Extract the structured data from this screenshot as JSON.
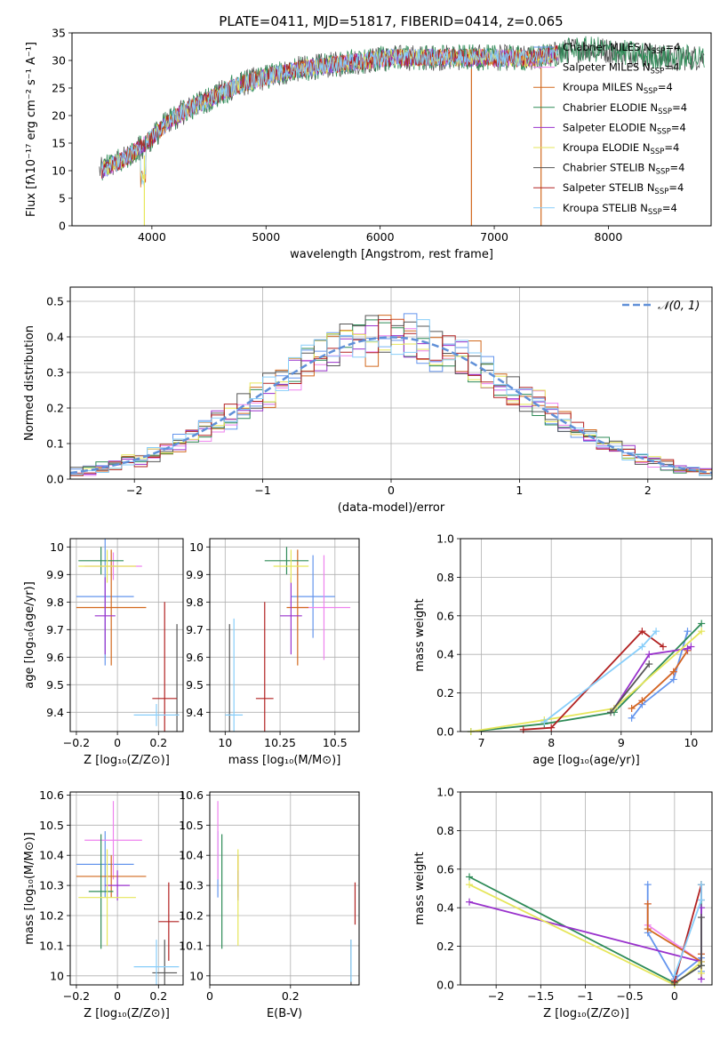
{
  "figure": {
    "title": "PLATE=0411, MJD=51817, FIBERID=0414, z=0.065"
  },
  "colors": {
    "series": [
      "#6495ed",
      "#ee82ee",
      "#d2691e",
      "#2e8b57",
      "#9932cc",
      "#e6e65a",
      "#555555",
      "#b22222",
      "#87cefa"
    ],
    "gaussian": "#6090d8",
    "grid": "#b0b0b0"
  },
  "chart_data": [
    {
      "id": "spectrum",
      "type": "line",
      "title": "PLATE=0411, MJD=51817, FIBERID=0414, z=0.065",
      "xlabel": "wavelength [Angstrom, rest frame]",
      "ylabel": "Flux [fλ10⁻¹⁷ erg cm⁻² s⁻¹ A⁻¹]",
      "xlim": [
        3300,
        8900
      ],
      "ylim": [
        0,
        35
      ],
      "xticks": [
        4000,
        5000,
        6000,
        7000,
        8000
      ],
      "yticks": [
        0,
        5,
        10,
        15,
        20,
        25,
        30,
        35
      ],
      "grid": false,
      "legend_position": "right",
      "legend": [
        {
          "name": "Chabrier MILES",
          "suffix": "N",
          "sub": "SSP",
          "tail": "=4"
        },
        {
          "name": "Salpeter MILES",
          "suffix": "N",
          "sub": "SSP",
          "tail": "=4"
        },
        {
          "name": "Kroupa MILES",
          "suffix": "N",
          "sub": "SSP",
          "tail": "=4"
        },
        {
          "name": "Chabrier ELODIE",
          "suffix": "N",
          "sub": "SSP",
          "tail": "=4"
        },
        {
          "name": "Salpeter ELODIE",
          "suffix": "N",
          "sub": "SSP",
          "tail": "=4"
        },
        {
          "name": "Kroupa ELODIE",
          "suffix": "N",
          "sub": "SSP",
          "tail": "=4"
        },
        {
          "name": "Chabrier STELIB",
          "suffix": "N",
          "sub": "SSP",
          "tail": "=4"
        },
        {
          "name": "Salpeter STELIB",
          "suffix": "N",
          "sub": "SSP",
          "tail": "=4"
        },
        {
          "name": "Kroupa STELIB",
          "suffix": "N",
          "sub": "SSP",
          "tail": "=4"
        }
      ],
      "continuum": {
        "x": [
          3550,
          3650,
          3750,
          3850,
          3950,
          4050,
          4150,
          4300,
          4500,
          4700,
          4900,
          5100,
          5300,
          5500,
          5700,
          5900,
          6100,
          6300,
          6500,
          6700,
          6900,
          7100,
          7300,
          7500,
          7700,
          7900,
          8100,
          8300,
          8500,
          8800
        ],
        "y": [
          10,
          11,
          12,
          13.5,
          15,
          17,
          19,
          21,
          23,
          25,
          26.5,
          27.5,
          28.5,
          29,
          29.5,
          30,
          30.5,
          30.5,
          30.5,
          30.5,
          30.5,
          30.5,
          30.3,
          31,
          32,
          32,
          31.5,
          31,
          30.5,
          30.5
        ]
      },
      "dips": [
        {
          "x": 3934,
          "y": 0
        },
        {
          "x": 6800,
          "y": 0
        },
        {
          "x": 7410,
          "y": 0
        }
      ]
    },
    {
      "id": "residuals",
      "type": "histogram",
      "xlabel": "(data-model)/error",
      "ylabel": "Normed distribution",
      "xlim": [
        -2.5,
        2.5
      ],
      "ylim": [
        0,
        0.54
      ],
      "xticks": [
        -2,
        -1,
        0,
        1,
        2
      ],
      "yticks": [
        0.0,
        0.1,
        0.2,
        0.3,
        0.4,
        0.5
      ],
      "grid": true,
      "legend_position": "top-right",
      "legend": "𝒩(0, 1)",
      "bin_width": 0.1,
      "gaussian": {
        "mu": 0,
        "sigma": 1
      }
    },
    {
      "id": "age-vs-Z",
      "type": "errorbar",
      "xlabel": "Z [log₁₀(Z/Z⊙)]",
      "ylabel": "age  [log₁₀(age/yr)]",
      "xlim": [
        -0.23,
        0.32
      ],
      "ylim": [
        9.33,
        10.03
      ],
      "xticks": [
        -0.2,
        0.0,
        0.2
      ],
      "yticks": [
        9.4,
        9.5,
        9.6,
        9.7,
        9.8,
        9.9,
        10.0
      ],
      "grid": true,
      "points": [
        {
          "x": -0.06,
          "y": 9.82,
          "xerr": 0.14,
          "yerr": 0.25,
          "c": 0
        },
        {
          "x": -0.02,
          "y": 9.93,
          "xerr": 0.14,
          "yerr": 0.05,
          "c": 1
        },
        {
          "x": -0.03,
          "y": 9.78,
          "xerr": 0.17,
          "yerr": 0.21,
          "c": 2
        },
        {
          "x": -0.08,
          "y": 9.95,
          "xerr": 0.11,
          "yerr": 0.05,
          "c": 3
        },
        {
          "x": -0.06,
          "y": 9.75,
          "xerr": 0.05,
          "yerr": 0.14,
          "c": 4
        },
        {
          "x": -0.05,
          "y": 9.93,
          "xerr": 0.14,
          "yerr": 0.06,
          "c": 5
        },
        {
          "x": 0.29,
          "y": 9.39,
          "xerr": 0.01,
          "yerr": 0.33,
          "c": 6
        },
        {
          "x": 0.23,
          "y": 9.45,
          "xerr": 0.06,
          "yerr": 0.35,
          "c": 7
        },
        {
          "x": 0.19,
          "y": 9.39,
          "xerr": 0.11,
          "yerr": 0.04,
          "c": 8
        }
      ]
    },
    {
      "id": "age-vs-mass",
      "type": "errorbar",
      "xlabel": "mass [log₁₀(M/M⊙)]",
      "ylabel": "",
      "xlim": [
        9.93,
        10.61
      ],
      "ylim": [
        9.33,
        10.03
      ],
      "xticks": [
        10.0,
        10.25,
        10.5
      ],
      "yticks": [
        9.4,
        9.5,
        9.6,
        9.7,
        9.8,
        9.9,
        10.0
      ],
      "grid": true,
      "points": [
        {
          "x": 10.4,
          "y": 9.82,
          "xerr": 0.1,
          "yerr": 0.15,
          "c": 0
        },
        {
          "x": 10.45,
          "y": 9.78,
          "xerr": 0.12,
          "yerr": 0.19,
          "c": 1
        },
        {
          "x": 10.33,
          "y": 9.78,
          "xerr": 0.05,
          "yerr": 0.21,
          "c": 2
        },
        {
          "x": 10.28,
          "y": 9.95,
          "xerr": 0.1,
          "yerr": 0.05,
          "c": 3
        },
        {
          "x": 10.3,
          "y": 9.75,
          "xerr": 0.05,
          "yerr": 0.14,
          "c": 4
        },
        {
          "x": 10.3,
          "y": 9.93,
          "xerr": 0.08,
          "yerr": 0.06,
          "c": 5
        },
        {
          "x": 10.02,
          "y": 9.39,
          "xerr": 0.01,
          "yerr": 0.33,
          "c": 6
        },
        {
          "x": 10.18,
          "y": 9.45,
          "xerr": 0.04,
          "yerr": 0.35,
          "c": 7
        },
        {
          "x": 10.04,
          "y": 9.39,
          "xerr": 0.04,
          "yerr": 0.35,
          "c": 8
        }
      ]
    },
    {
      "id": "weight-vs-age",
      "type": "line",
      "xlabel": "age  [log₁₀(age/yr)]",
      "ylabel": "mass weight",
      "xlim": [
        6.7,
        10.3
      ],
      "ylim": [
        0,
        1.0
      ],
      "xticks": [
        7,
        8,
        9,
        10
      ],
      "yticks": [
        0.0,
        0.2,
        0.4,
        0.6,
        0.8,
        1.0
      ],
      "grid": true,
      "series": [
        {
          "c": 0,
          "x": [
            9.15,
            9.3,
            9.75,
            9.95
          ],
          "y": [
            0.07,
            0.14,
            0.27,
            0.52
          ]
        },
        {
          "c": 1,
          "x": [
            9.15,
            9.3,
            9.75,
            9.95
          ],
          "y": [
            0.12,
            0.16,
            0.31,
            0.42
          ]
        },
        {
          "c": 2,
          "x": [
            9.15,
            9.3,
            9.75,
            9.95
          ],
          "y": [
            0.12,
            0.16,
            0.31,
            0.42
          ]
        },
        {
          "c": 3,
          "x": [
            6.85,
            7.9,
            8.9,
            10.15
          ],
          "y": [
            0.0,
            0.04,
            0.1,
            0.56
          ]
        },
        {
          "c": 4,
          "x": [
            8.9,
            9.4,
            9.95,
            10.0
          ],
          "y": [
            0.12,
            0.4,
            0.43,
            0.44
          ]
        },
        {
          "c": 5,
          "x": [
            6.85,
            7.9,
            8.9,
            10.15
          ],
          "y": [
            0.0,
            0.06,
            0.12,
            0.52
          ]
        },
        {
          "c": 6,
          "x": [
            8.85,
            9.4
          ],
          "y": [
            0.1,
            0.35
          ]
        },
        {
          "c": 7,
          "x": [
            7.6,
            8.0,
            9.3,
            9.6
          ],
          "y": [
            0.01,
            0.02,
            0.52,
            0.44
          ]
        },
        {
          "c": 8,
          "x": [
            7.9,
            9.3,
            9.5
          ],
          "y": [
            0.05,
            0.44,
            0.52
          ]
        }
      ]
    },
    {
      "id": "mass-vs-Z",
      "type": "errorbar",
      "xlabel": "Z [log₁₀(Z/Z⊙)]",
      "ylabel": "mass [log₁₀(M/M⊙)]",
      "xlim": [
        -0.23,
        0.32
      ],
      "ylim": [
        9.97,
        10.61
      ],
      "xticks": [
        -0.2,
        0.0,
        0.2
      ],
      "yticks": [
        10.0,
        10.1,
        10.2,
        10.3,
        10.4,
        10.5,
        10.6
      ],
      "grid": true,
      "points": [
        {
          "x": -0.06,
          "y": 10.37,
          "xerr": 0.14,
          "yerr": 0.11,
          "c": 0
        },
        {
          "x": -0.02,
          "y": 10.45,
          "xerr": 0.14,
          "yerr": 0.13,
          "c": 1
        },
        {
          "x": -0.03,
          "y": 10.33,
          "xerr": 0.17,
          "yerr": 0.07,
          "c": 2
        },
        {
          "x": -0.08,
          "y": 10.28,
          "xerr": 0.06,
          "yerr": 0.19,
          "c": 3
        },
        {
          "x": 0.0,
          "y": 10.3,
          "xerr": 0.06,
          "yerr": 0.05,
          "c": 4
        },
        {
          "x": -0.05,
          "y": 10.26,
          "xerr": 0.14,
          "yerr": 0.16,
          "c": 5
        },
        {
          "x": 0.23,
          "y": 10.01,
          "xerr": 0.06,
          "yerr": 0.11,
          "c": 6
        },
        {
          "x": 0.25,
          "y": 10.18,
          "xerr": 0.05,
          "yerr": 0.13,
          "c": 7
        },
        {
          "x": 0.19,
          "y": 10.03,
          "xerr": 0.11,
          "yerr": 0.09,
          "c": 8
        }
      ]
    },
    {
      "id": "mass-vs-ebv",
      "type": "errorbar",
      "xlabel": "E(B-V)",
      "ylabel": "",
      "xlim": [
        0.0,
        0.37
      ],
      "ylim": [
        9.97,
        10.61
      ],
      "xticks": [
        0.0,
        0.2
      ],
      "yticks": [
        10.0,
        10.1,
        10.2,
        10.3,
        10.4,
        10.5,
        10.6
      ],
      "grid": true,
      "points": [
        {
          "x": 0.02,
          "y": 10.37,
          "xerr": 0.0,
          "yerr": 0.11,
          "c": 0
        },
        {
          "x": 0.02,
          "y": 10.45,
          "xerr": 0.0,
          "yerr": 0.13,
          "c": 1
        },
        {
          "x": 0.07,
          "y": 10.33,
          "xerr": 0.0,
          "yerr": 0.07,
          "c": 2
        },
        {
          "x": 0.03,
          "y": 10.28,
          "xerr": 0.0,
          "yerr": 0.19,
          "c": 3
        },
        {
          "x": 0.07,
          "y": 10.3,
          "xerr": 0.0,
          "yerr": 0.05,
          "c": 4
        },
        {
          "x": 0.07,
          "y": 10.26,
          "xerr": 0.0,
          "yerr": 0.16,
          "c": 5
        },
        {
          "x": 0.35,
          "y": 10.01,
          "xerr": 0.0,
          "yerr": 0.11,
          "c": 6
        },
        {
          "x": 0.36,
          "y": 10.24,
          "xerr": 0.0,
          "yerr": 0.07,
          "c": 7
        },
        {
          "x": 0.35,
          "y": 10.05,
          "xerr": 0.0,
          "yerr": 0.07,
          "c": 8
        }
      ]
    },
    {
      "id": "weight-vs-Z",
      "type": "line",
      "xlabel": "Z [log₁₀(Z/Z⊙)]",
      "ylabel": "mass weight",
      "xlim": [
        -2.4,
        0.42
      ],
      "ylim": [
        0,
        1.0
      ],
      "xticks": [
        -2.0,
        -1.5,
        -1.0,
        -0.5,
        0.0
      ],
      "yticks": [
        0.0,
        0.2,
        0.4,
        0.6,
        0.8,
        1.0
      ],
      "grid": true,
      "series": [
        {
          "c": 0,
          "x": [
            -0.3,
            -0.3,
            0.0,
            0.3,
            0.3
          ],
          "y": [
            0.52,
            0.27,
            0.03,
            0.14,
            0.07
          ]
        },
        {
          "c": 1,
          "x": [
            -0.3,
            -0.3,
            0.3,
            0.3
          ],
          "y": [
            0.42,
            0.31,
            0.12,
            0.16
          ]
        },
        {
          "c": 2,
          "x": [
            -0.3,
            -0.3,
            0.3,
            0.3
          ],
          "y": [
            0.42,
            0.29,
            0.12,
            0.16
          ]
        },
        {
          "c": 3,
          "x": [
            -2.3,
            0.0,
            0.3,
            0.3
          ],
          "y": [
            0.56,
            0.01,
            0.1,
            0.52
          ]
        },
        {
          "c": 4,
          "x": [
            -2.3,
            0.3,
            0.3,
            0.3
          ],
          "y": [
            0.43,
            0.12,
            0.4,
            0.03
          ]
        },
        {
          "c": 5,
          "x": [
            -2.3,
            0.0,
            0.3,
            0.3
          ],
          "y": [
            0.52,
            0.0,
            0.12,
            0.06
          ]
        },
        {
          "c": 6,
          "x": [
            0.0,
            0.3,
            0.3
          ],
          "y": [
            0.01,
            0.1,
            0.35
          ]
        },
        {
          "c": 7,
          "x": [
            0.0,
            0.3,
            0.3
          ],
          "y": [
            0.02,
            0.52,
            0.44
          ]
        },
        {
          "c": 8,
          "x": [
            0.0,
            0.3,
            0.3
          ],
          "y": [
            0.05,
            0.44,
            0.52
          ]
        }
      ]
    }
  ]
}
